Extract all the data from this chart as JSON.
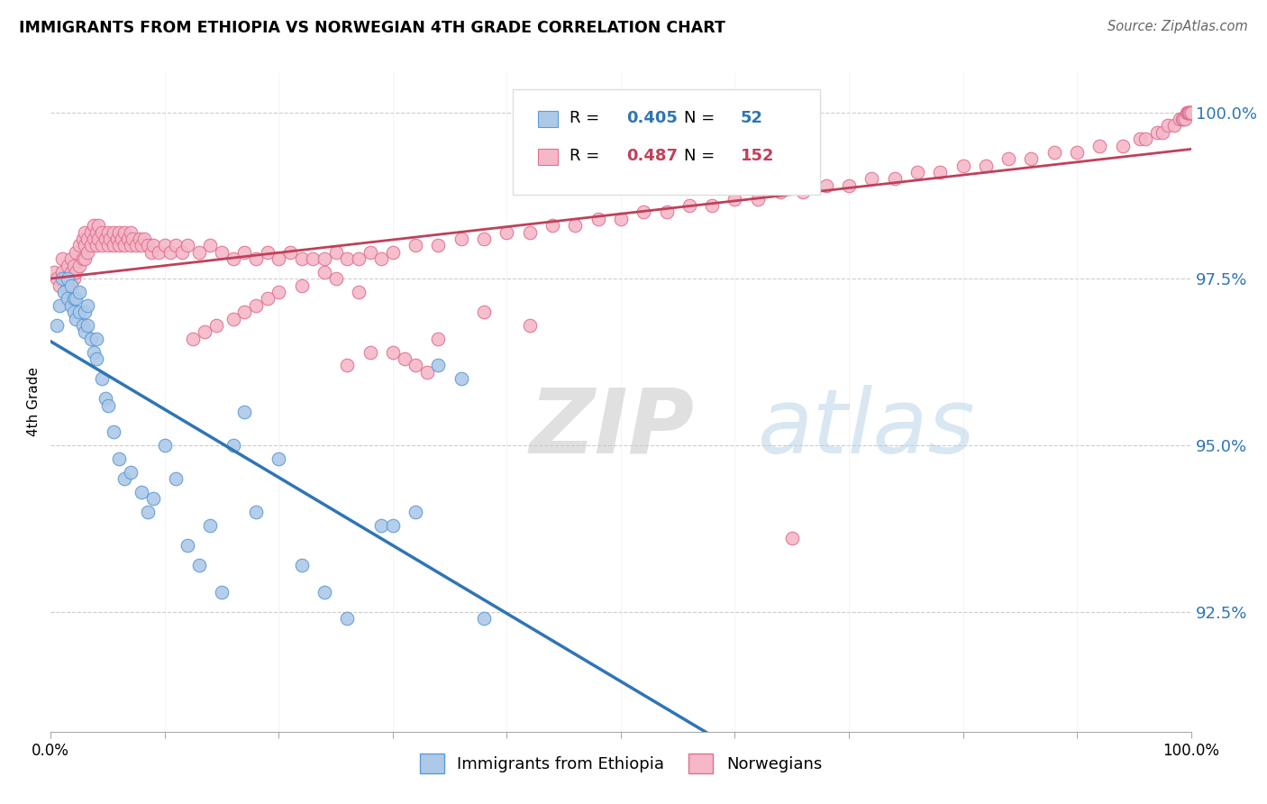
{
  "title": "IMMIGRANTS FROM ETHIOPIA VS NORWEGIAN 4TH GRADE CORRELATION CHART",
  "source": "Source: ZipAtlas.com",
  "ylabel": "4th Grade",
  "ytick_values": [
    0.925,
    0.95,
    0.975,
    1.0
  ],
  "xlim": [
    0.0,
    1.0
  ],
  "ylim": [
    0.907,
    1.006
  ],
  "legend_r_blue": "0.405",
  "legend_n_blue": "52",
  "legend_r_pink": "0.487",
  "legend_n_pink": "152",
  "color_blue_fill": "#aec9e8",
  "color_blue_edge": "#5b9bd5",
  "color_blue_line": "#2e75b6",
  "color_pink_fill": "#f4b8c8",
  "color_pink_edge": "#e07090",
  "color_pink_line": "#c0405a",
  "background_color": "#ffffff",
  "blue_x": [
    0.005,
    0.008,
    0.01,
    0.012,
    0.015,
    0.015,
    0.018,
    0.018,
    0.02,
    0.02,
    0.022,
    0.022,
    0.025,
    0.025,
    0.028,
    0.03,
    0.03,
    0.032,
    0.032,
    0.035,
    0.038,
    0.04,
    0.04,
    0.045,
    0.048,
    0.05,
    0.055,
    0.06,
    0.065,
    0.07,
    0.08,
    0.085,
    0.09,
    0.1,
    0.11,
    0.12,
    0.13,
    0.14,
    0.15,
    0.16,
    0.17,
    0.18,
    0.2,
    0.22,
    0.24,
    0.26,
    0.29,
    0.3,
    0.32,
    0.34,
    0.36,
    0.38
  ],
  "blue_y": [
    0.968,
    0.971,
    0.975,
    0.973,
    0.972,
    0.975,
    0.971,
    0.974,
    0.97,
    0.972,
    0.969,
    0.972,
    0.97,
    0.973,
    0.968,
    0.967,
    0.97,
    0.968,
    0.971,
    0.966,
    0.964,
    0.963,
    0.966,
    0.96,
    0.957,
    0.956,
    0.952,
    0.948,
    0.945,
    0.946,
    0.943,
    0.94,
    0.942,
    0.95,
    0.945,
    0.935,
    0.932,
    0.938,
    0.928,
    0.95,
    0.955,
    0.94,
    0.948,
    0.932,
    0.928,
    0.924,
    0.938,
    0.938,
    0.94,
    0.962,
    0.96,
    0.924
  ],
  "pink_x": [
    0.003,
    0.005,
    0.008,
    0.01,
    0.01,
    0.012,
    0.015,
    0.015,
    0.018,
    0.018,
    0.02,
    0.02,
    0.022,
    0.022,
    0.025,
    0.025,
    0.028,
    0.028,
    0.03,
    0.03,
    0.03,
    0.032,
    0.032,
    0.035,
    0.035,
    0.038,
    0.038,
    0.04,
    0.04,
    0.042,
    0.042,
    0.045,
    0.045,
    0.048,
    0.05,
    0.05,
    0.052,
    0.055,
    0.055,
    0.058,
    0.06,
    0.06,
    0.062,
    0.065,
    0.065,
    0.068,
    0.07,
    0.07,
    0.072,
    0.075,
    0.078,
    0.08,
    0.082,
    0.085,
    0.088,
    0.09,
    0.095,
    0.1,
    0.105,
    0.11,
    0.115,
    0.12,
    0.13,
    0.14,
    0.15,
    0.16,
    0.17,
    0.18,
    0.19,
    0.2,
    0.21,
    0.22,
    0.23,
    0.24,
    0.25,
    0.26,
    0.27,
    0.28,
    0.29,
    0.3,
    0.32,
    0.34,
    0.36,
    0.38,
    0.4,
    0.42,
    0.44,
    0.46,
    0.48,
    0.5,
    0.52,
    0.54,
    0.56,
    0.58,
    0.6,
    0.62,
    0.64,
    0.66,
    0.68,
    0.7,
    0.72,
    0.74,
    0.76,
    0.78,
    0.8,
    0.82,
    0.84,
    0.86,
    0.88,
    0.9,
    0.92,
    0.94,
    0.955,
    0.96,
    0.97,
    0.975,
    0.98,
    0.985,
    0.99,
    0.992,
    0.993,
    0.995,
    0.996,
    0.997,
    0.998,
    0.998,
    0.999,
    0.999,
    1.0,
    1.0,
    0.65,
    0.38,
    0.42,
    0.34,
    0.28,
    0.26,
    0.3,
    0.31,
    0.32,
    0.33,
    0.25,
    0.27,
    0.24,
    0.22,
    0.2,
    0.19,
    0.18,
    0.17,
    0.16,
    0.145,
    0.135,
    0.125
  ],
  "pink_y": [
    0.976,
    0.975,
    0.974,
    0.976,
    0.978,
    0.975,
    0.974,
    0.977,
    0.976,
    0.978,
    0.975,
    0.977,
    0.976,
    0.979,
    0.977,
    0.98,
    0.978,
    0.981,
    0.978,
    0.98,
    0.982,
    0.979,
    0.981,
    0.98,
    0.982,
    0.981,
    0.983,
    0.98,
    0.982,
    0.981,
    0.983,
    0.98,
    0.982,
    0.981,
    0.98,
    0.982,
    0.981,
    0.98,
    0.982,
    0.981,
    0.98,
    0.982,
    0.981,
    0.98,
    0.982,
    0.981,
    0.98,
    0.982,
    0.981,
    0.98,
    0.981,
    0.98,
    0.981,
    0.98,
    0.979,
    0.98,
    0.979,
    0.98,
    0.979,
    0.98,
    0.979,
    0.98,
    0.979,
    0.98,
    0.979,
    0.978,
    0.979,
    0.978,
    0.979,
    0.978,
    0.979,
    0.978,
    0.978,
    0.978,
    0.979,
    0.978,
    0.978,
    0.979,
    0.978,
    0.979,
    0.98,
    0.98,
    0.981,
    0.981,
    0.982,
    0.982,
    0.983,
    0.983,
    0.984,
    0.984,
    0.985,
    0.985,
    0.986,
    0.986,
    0.987,
    0.987,
    0.988,
    0.988,
    0.989,
    0.989,
    0.99,
    0.99,
    0.991,
    0.991,
    0.992,
    0.992,
    0.993,
    0.993,
    0.994,
    0.994,
    0.995,
    0.995,
    0.996,
    0.996,
    0.997,
    0.997,
    0.998,
    0.998,
    0.999,
    0.999,
    0.999,
    0.999,
    1.0,
    1.0,
    1.0,
    1.0,
    1.0,
    1.0,
    1.0,
    1.0,
    0.936,
    0.97,
    0.968,
    0.966,
    0.964,
    0.962,
    0.964,
    0.963,
    0.962,
    0.961,
    0.975,
    0.973,
    0.976,
    0.974,
    0.973,
    0.972,
    0.971,
    0.97,
    0.969,
    0.968,
    0.967,
    0.966
  ]
}
